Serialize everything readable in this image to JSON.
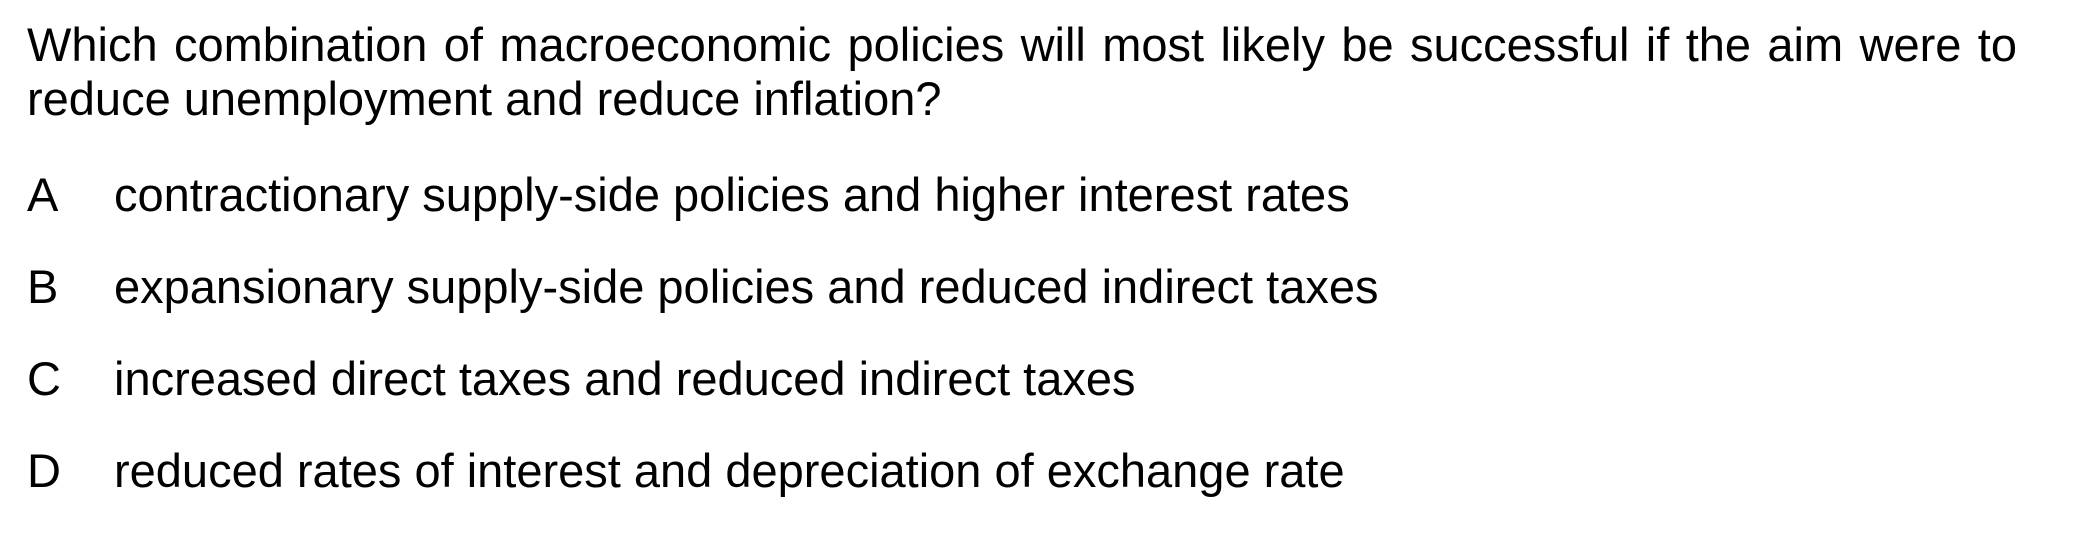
{
  "question": {
    "line1": "Which combination of macroeconomic policies will most likely be successful if the aim were to",
    "line2": "reduce unemployment and reduce inflation?"
  },
  "options": [
    {
      "letter": "A",
      "text": "contractionary supply-side policies and higher interest rates"
    },
    {
      "letter": "B",
      "text": "expansionary supply-side policies and reduced indirect taxes"
    },
    {
      "letter": "C",
      "text": "increased direct taxes and reduced indirect taxes"
    },
    {
      "letter": "D",
      "text": "reduced rates of interest and depreciation of exchange rate"
    }
  ]
}
